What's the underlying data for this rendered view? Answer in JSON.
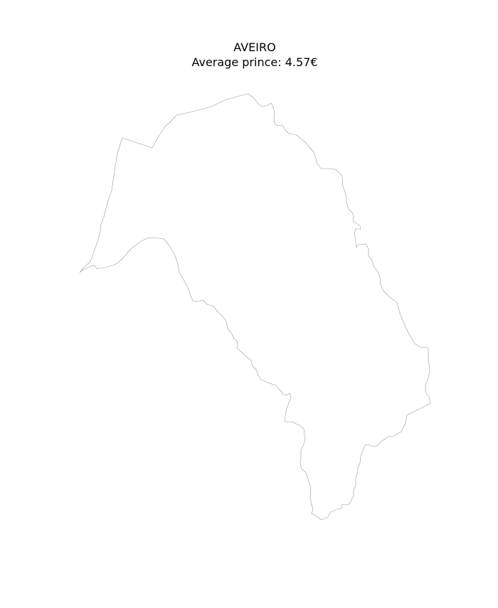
{
  "map": {
    "title": "AVEIRO",
    "subtitle": "Average prince: 4.57€",
    "region_name": "Aveiro",
    "outline_color": "#9a9a9a",
    "fill_color": "#ffffff"
  }
}
